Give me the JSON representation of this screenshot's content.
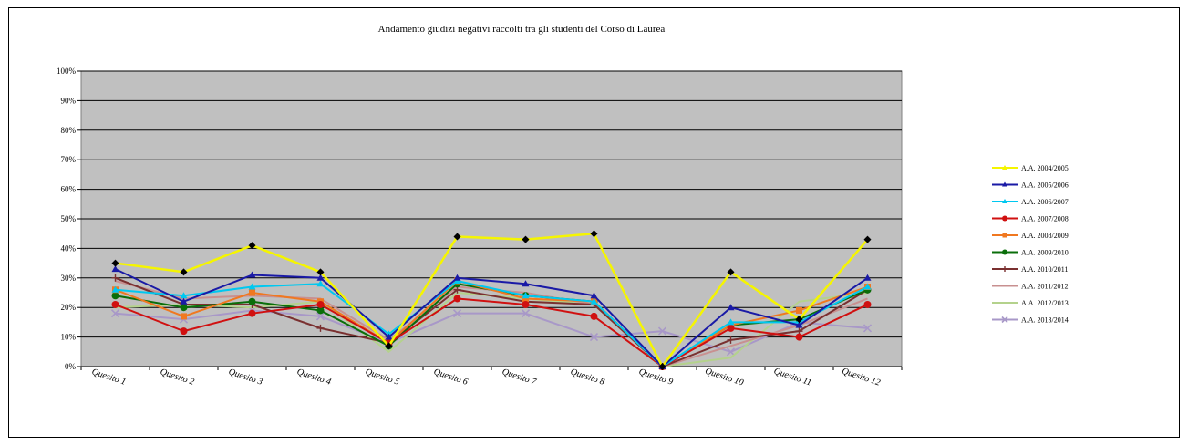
{
  "chart_data": {
    "type": "line",
    "title": "Andamento giudizi negativi raccolti tra gli studenti del Corso di Laurea",
    "xlabel": "",
    "ylabel": "",
    "ylim": [
      0,
      100
    ],
    "yticks": [
      "0%",
      "10%",
      "20%",
      "30%",
      "40%",
      "50%",
      "60%",
      "70%",
      "80%",
      "90%",
      "100%"
    ],
    "grid": true,
    "legend_position": "right",
    "categories": [
      "Quesito 1",
      "Quesito 2",
      "Quesito 3",
      "Quesito 4",
      "Quesito 5",
      "Quesito 6",
      "Quesito 7",
      "Quesito 8",
      "Quesito 9",
      "Quesito 10",
      "Quesito 11",
      "Quesito 12"
    ],
    "series": [
      {
        "name": "A.A. 2004/2005",
        "color": "#f5f500",
        "marker": "diamond",
        "values": [
          35,
          32,
          41,
          32,
          7,
          44,
          43,
          45,
          0,
          32,
          16,
          43
        ]
      },
      {
        "name": "A.A. 2005/2006",
        "color": "#1a1aa6",
        "marker": "triangle",
        "values": [
          33,
          22,
          31,
          30,
          10,
          30,
          28,
          24,
          0,
          20,
          14,
          30
        ]
      },
      {
        "name": "A.A. 2006/2007",
        "color": "#00c8f0",
        "marker": "triangle",
        "values": [
          26,
          24,
          27,
          28,
          11,
          29,
          24,
          22,
          0,
          15,
          15,
          27
        ]
      },
      {
        "name": "A.A. 2007/2008",
        "color": "#d01010",
        "marker": "circle",
        "values": [
          21,
          12,
          18,
          21,
          8,
          23,
          21,
          17,
          0,
          13,
          10,
          21
        ]
      },
      {
        "name": "A.A. 2008/2009",
        "color": "#f07820",
        "marker": "square",
        "values": [
          26,
          17,
          25,
          22,
          8,
          29,
          23,
          22,
          0,
          14,
          19,
          27
        ]
      },
      {
        "name": "A.A. 2009/2010",
        "color": "#0a6e0a",
        "marker": "circle",
        "values": [
          24,
          20,
          22,
          19,
          7,
          28,
          24,
          22,
          0,
          14,
          16,
          26
        ]
      },
      {
        "name": "A.A. 2010/2011",
        "color": "#7a3030",
        "marker": "plus",
        "values": [
          30,
          21,
          21,
          13,
          8,
          26,
          22,
          21,
          0,
          9,
          12,
          26
        ]
      },
      {
        "name": "A.A. 2011/2012",
        "color": "#c89090",
        "marker": "none",
        "values": [
          29,
          23,
          24,
          23,
          9,
          27,
          25,
          21,
          0,
          7,
          14,
          23
        ]
      },
      {
        "name": "A.A. 2012/2013",
        "color": "#b4d28c",
        "marker": "none",
        "values": [
          20,
          21,
          20,
          22,
          5,
          25,
          23,
          21,
          0,
          3,
          22,
          25
        ]
      },
      {
        "name": "A.A. 2013/2014",
        "color": "#a898c8",
        "marker": "cross",
        "values": [
          18,
          16,
          19,
          17,
          8,
          18,
          18,
          10,
          12,
          5,
          15,
          13
        ]
      }
    ]
  }
}
